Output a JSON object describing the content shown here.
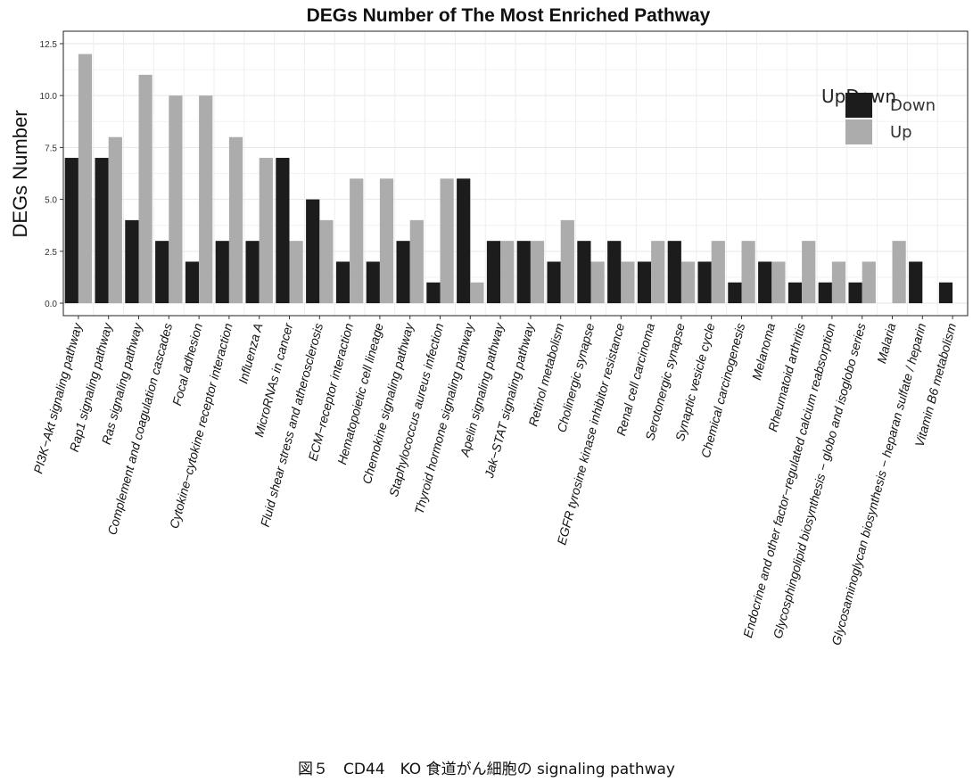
{
  "chart_data": {
    "type": "bar",
    "title": "DEGs Number of The Most Enriched Pathway",
    "xlabel": "",
    "ylabel": "DEGs Number",
    "ylim": [
      0,
      12.5
    ],
    "yticks": [
      "0.0",
      "2.5",
      "5.0",
      "7.5",
      "10.0",
      "12.5"
    ],
    "grid": true,
    "legend": {
      "title": "UpDown",
      "position": "top-right"
    },
    "categories": [
      "PI3K−Akt signaling pathway",
      "Rap1 signaling pathway",
      "Ras signaling pathway",
      "Complement and coagulation cascades",
      "Focal adhesion",
      "Cytokine−cytokine receptor interaction",
      "Influenza A",
      "MicroRNAs in cancer",
      "Fluid shear stress and atherosclerosis",
      "ECM−receptor interaction",
      "Hematopoietic cell lineage",
      "Chemokine signaling pathway",
      "Staphylococcus aureus infection",
      "Thyroid hormone signaling pathway",
      "Apelin signaling pathway",
      "Jak−STAT signaling pathway",
      "Retinol metabolism",
      "Cholinergic synapse",
      "EGFR tyrosine kinase inhibitor resistance",
      "Renal cell carcinoma",
      "Serotonergic synapse",
      "Synaptic vesicle cycle",
      "Chemical carcinogenesis",
      "Melanoma",
      "Rheumatoid arthritis",
      "Endocrine and other factor−regulated calcium reabsorption",
      "Glycosphingolipid biosynthesis − globo and isoglobo series",
      "Malaria",
      "Glycosaminoglycan biosynthesis − heparan sulfate / heparin",
      "Vitamin B6 metabolism"
    ],
    "series": [
      {
        "name": "Down",
        "color": "#1c1c1c",
        "values": [
          7,
          7,
          4,
          3,
          2,
          3,
          3,
          7,
          5,
          2,
          2,
          3,
          1,
          6,
          3,
          3,
          2,
          3,
          3,
          2,
          3,
          2,
          1,
          2,
          1,
          1,
          1,
          0,
          2,
          1
        ]
      },
      {
        "name": "Up",
        "color": "#acacac",
        "values": [
          12,
          8,
          11,
          10,
          10,
          8,
          7,
          3,
          4,
          6,
          6,
          4,
          6,
          1,
          3,
          3,
          4,
          2,
          2,
          3,
          2,
          3,
          3,
          2,
          3,
          2,
          2,
          3,
          0,
          0
        ]
      }
    ]
  },
  "caption": "図５　CD44　KO 食道がん細胞の signaling pathway"
}
